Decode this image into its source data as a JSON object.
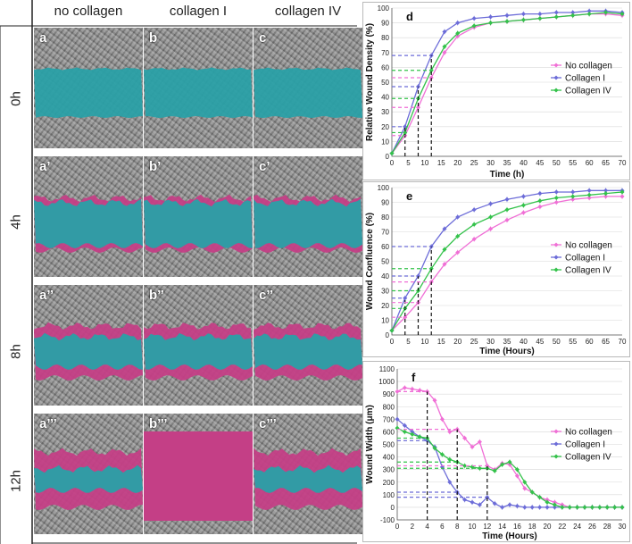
{
  "left_panel": {
    "columns": [
      "no collagen",
      "collagen I",
      "collagen IV"
    ],
    "rows": [
      "0h",
      "4h",
      "8h",
      "12h"
    ],
    "cell_labels": [
      [
        "a",
        "b",
        "c"
      ],
      [
        "a’",
        "b’",
        "c’"
      ],
      [
        "a’’",
        "b’’",
        "c’’"
      ],
      [
        "a’’’",
        "b’’’",
        "c’’’"
      ]
    ],
    "colors": {
      "wound": "#2aa0a6",
      "migrated": "#c43f86",
      "background": "#8d8d8d"
    }
  },
  "chart_data": [
    {
      "type": "line",
      "panel_label": "d",
      "title": "",
      "xlabel": "Time (h)",
      "ylabel": "Relative Wound Density (%)",
      "xlim": [
        0,
        70
      ],
      "ylim": [
        0,
        100
      ],
      "xticks": [
        0,
        5,
        10,
        15,
        20,
        25,
        30,
        35,
        40,
        45,
        50,
        55,
        60,
        65,
        70
      ],
      "yticks": [
        0,
        10,
        20,
        30,
        40,
        50,
        60,
        70,
        80,
        90,
        100
      ],
      "legend_position": "right",
      "series": [
        {
          "name": "No collagen",
          "color": "#f06fd6",
          "x": [
            0,
            4,
            8,
            12,
            16,
            20,
            25,
            30,
            35,
            40,
            45,
            50,
            55,
            60,
            65,
            70
          ],
          "y": [
            2,
            14,
            33,
            53,
            70,
            81,
            87,
            90,
            91,
            92,
            93,
            94,
            95,
            96,
            96,
            95
          ]
        },
        {
          "name": "Collagen I",
          "color": "#6c6cd8",
          "x": [
            0,
            4,
            8,
            12,
            16,
            20,
            25,
            30,
            35,
            40,
            45,
            50,
            55,
            60,
            65,
            70
          ],
          "y": [
            2,
            20,
            47,
            68,
            84,
            90,
            93,
            94,
            95,
            96,
            96,
            97,
            97,
            98,
            98,
            97
          ]
        },
        {
          "name": "Collagen IV",
          "color": "#33c24a",
          "x": [
            0,
            4,
            8,
            12,
            16,
            20,
            25,
            30,
            35,
            40,
            45,
            50,
            55,
            60,
            65,
            70
          ],
          "y": [
            2,
            16,
            39,
            58,
            74,
            83,
            88,
            90,
            91,
            92,
            93,
            94,
            95,
            96,
            97,
            96
          ]
        }
      ],
      "guide_lines": {
        "times": [
          4,
          8,
          12
        ],
        "levels": [
          {
            "series": "No collagen",
            "values": [
              14,
              33,
              53
            ]
          },
          {
            "series": "Collagen I",
            "values": [
              20,
              47,
              68
            ]
          },
          {
            "series": "Collagen IV",
            "values": [
              16,
              39,
              58
            ]
          }
        ]
      }
    },
    {
      "type": "line",
      "panel_label": "e",
      "title": "",
      "xlabel": "Time (Hours)",
      "ylabel": "Wound Confluence (%)",
      "xlim": [
        0,
        70
      ],
      "ylim": [
        0,
        100
      ],
      "xticks": [
        0,
        5,
        10,
        15,
        20,
        25,
        30,
        35,
        40,
        45,
        50,
        55,
        60,
        65,
        70
      ],
      "yticks": [
        0,
        10,
        20,
        30,
        40,
        50,
        60,
        70,
        80,
        90,
        100
      ],
      "legend_position": "right",
      "series": [
        {
          "name": "No collagen",
          "color": "#f06fd6",
          "x": [
            0,
            4,
            8,
            12,
            16,
            20,
            25,
            30,
            35,
            40,
            45,
            50,
            55,
            60,
            65,
            70
          ],
          "y": [
            3,
            12,
            22,
            36,
            48,
            56,
            65,
            72,
            78,
            83,
            87,
            90,
            92,
            93,
            94,
            94
          ]
        },
        {
          "name": "Collagen I",
          "color": "#6c6cd8",
          "x": [
            0,
            4,
            8,
            12,
            16,
            20,
            25,
            30,
            35,
            40,
            45,
            50,
            55,
            60,
            65,
            70
          ],
          "y": [
            3,
            25,
            40,
            60,
            72,
            80,
            85,
            89,
            92,
            94,
            96,
            97,
            97,
            98,
            98,
            98
          ]
        },
        {
          "name": "Collagen IV",
          "color": "#33c24a",
          "x": [
            0,
            4,
            8,
            12,
            16,
            20,
            25,
            30,
            35,
            40,
            45,
            50,
            55,
            60,
            65,
            70
          ],
          "y": [
            3,
            18,
            30,
            45,
            58,
            67,
            75,
            80,
            85,
            88,
            91,
            93,
            94,
            95,
            96,
            97
          ]
        }
      ],
      "guide_lines": {
        "times": [
          4,
          8,
          12
        ],
        "levels": [
          {
            "series": "No collagen",
            "values": [
              12,
              22,
              36
            ]
          },
          {
            "series": "Collagen I",
            "values": [
              25,
              40,
              60
            ]
          },
          {
            "series": "Collagen IV",
            "values": [
              18,
              30,
              45
            ]
          }
        ]
      }
    },
    {
      "type": "line",
      "panel_label": "f",
      "title": "",
      "xlabel": "Time (Hours)",
      "ylabel": "Wound Width (μm)",
      "xlim": [
        0,
        30
      ],
      "ylim": [
        -100,
        1100
      ],
      "xticks": [
        0,
        2,
        4,
        6,
        8,
        10,
        12,
        14,
        16,
        18,
        20,
        22,
        24,
        26,
        28,
        30
      ],
      "yticks": [
        -100,
        0,
        100,
        200,
        300,
        400,
        500,
        600,
        700,
        800,
        900,
        1000,
        1100
      ],
      "legend_position": "right",
      "series": [
        {
          "name": "No collagen",
          "color": "#f06fd6",
          "x": [
            0,
            1,
            2,
            3,
            4,
            5,
            6,
            7,
            8,
            9,
            10,
            11,
            12,
            13,
            14,
            15,
            16,
            17,
            18,
            19,
            20,
            21,
            22,
            23,
            24,
            25,
            26,
            27,
            28,
            29,
            30
          ],
          "y": [
            920,
            950,
            940,
            930,
            920,
            850,
            700,
            600,
            620,
            550,
            480,
            520,
            330,
            300,
            350,
            340,
            250,
            150,
            120,
            80,
            60,
            40,
            20,
            0,
            0,
            0,
            0,
            0,
            0,
            0,
            0
          ]
        },
        {
          "name": "Collagen I",
          "color": "#6c6cd8",
          "x": [
            0,
            1,
            2,
            3,
            4,
            5,
            6,
            7,
            8,
            9,
            10,
            11,
            12,
            13,
            14,
            15,
            16,
            17,
            18,
            19,
            20,
            21,
            22,
            23,
            24,
            25,
            26,
            27,
            28,
            29,
            30
          ],
          "y": [
            700,
            650,
            600,
            560,
            530,
            480,
            320,
            200,
            120,
            60,
            40,
            20,
            80,
            30,
            0,
            20,
            10,
            0,
            0,
            0,
            0,
            0,
            0,
            0,
            0,
            0,
            0,
            0,
            0,
            0,
            0
          ]
        },
        {
          "name": "Collagen IV",
          "color": "#33c24a",
          "x": [
            0,
            1,
            2,
            3,
            4,
            5,
            6,
            7,
            8,
            9,
            10,
            11,
            12,
            13,
            14,
            15,
            16,
            17,
            18,
            19,
            20,
            21,
            22,
            23,
            24,
            25,
            26,
            27,
            28,
            29,
            30
          ],
          "y": [
            630,
            600,
            580,
            560,
            550,
            470,
            420,
            380,
            360,
            330,
            320,
            310,
            310,
            290,
            340,
            360,
            300,
            200,
            120,
            80,
            40,
            20,
            0,
            0,
            0,
            0,
            0,
            0,
            0,
            0,
            0
          ]
        }
      ],
      "guide_lines": {
        "times": [
          4,
          8,
          12
        ],
        "levels": [
          {
            "series": "No collagen",
            "values": [
              920,
              620,
              330
            ]
          },
          {
            "series": "Collagen I",
            "values": [
              530,
              120,
              80
            ]
          },
          {
            "series": "Collagen IV",
            "values": [
              550,
              360,
              310
            ]
          }
        ]
      }
    }
  ]
}
